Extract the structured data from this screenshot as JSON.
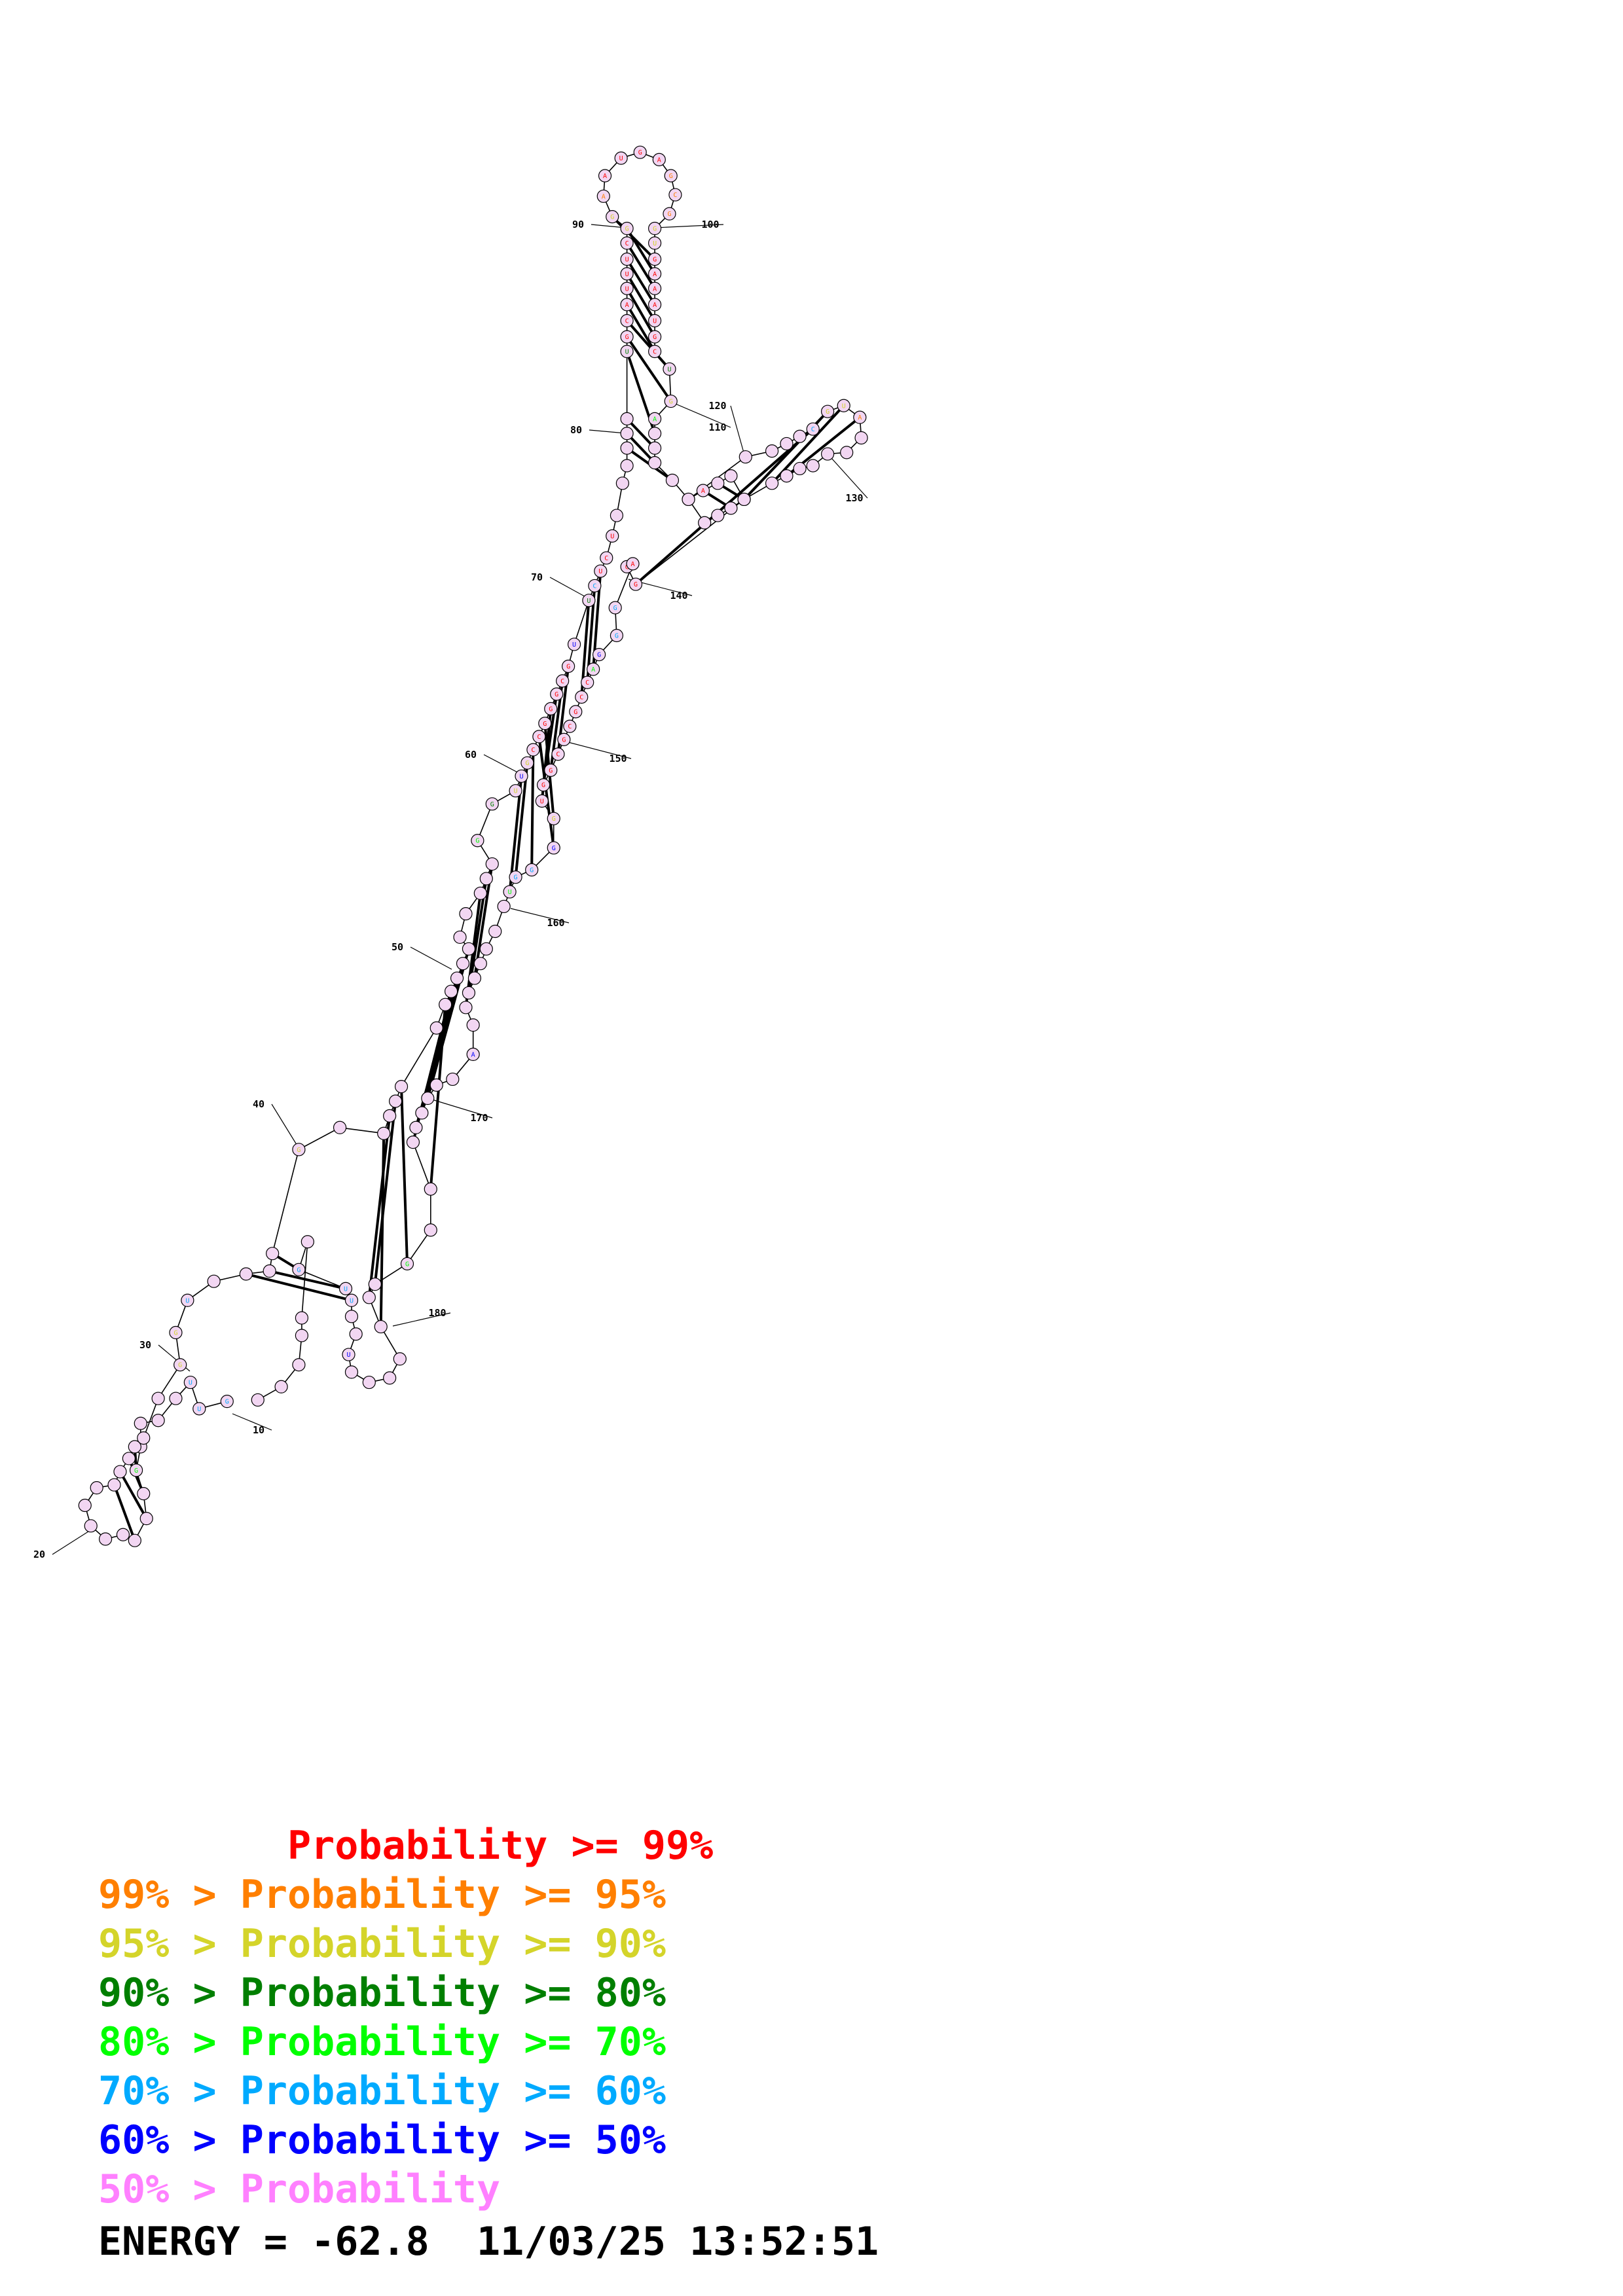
{
  "colors": {
    "p99": "#ff0000",
    "p95": "#ff7f00",
    "p90": "#d4d42a",
    "p80": "#007f00",
    "p70": "#00ff00",
    "p60": "#00aaff",
    "p50": "#0000ff",
    "low": "#ff80ff"
  },
  "position_labels": [
    "10",
    "20",
    "30",
    "40",
    "50",
    "60",
    "70",
    "80",
    "90",
    "100",
    "110",
    "120",
    "130",
    "140",
    "150",
    "160",
    "170",
    "180"
  ],
  "legend": [
    {
      "text": "        Probability >= 99%",
      "color_key": "p99"
    },
    {
      "text": "99% > Probability >= 95%",
      "color_key": "p95"
    },
    {
      "text": "95% > Probability >= 90%",
      "color_key": "p90"
    },
    {
      "text": "90% > Probability >= 80%",
      "color_key": "p80"
    },
    {
      "text": "80% > Probability >= 70%",
      "color_key": "p70"
    },
    {
      "text": "70% > Probability >= 60%",
      "color_key": "p60"
    },
    {
      "text": "60% > Probability >= 50%",
      "color_key": "p50"
    },
    {
      "text": "50% > Probability",
      "color_key": "low"
    }
  ],
  "energy_text": "ENERGY = -62.8  11/03/25 13:52:51"
}
